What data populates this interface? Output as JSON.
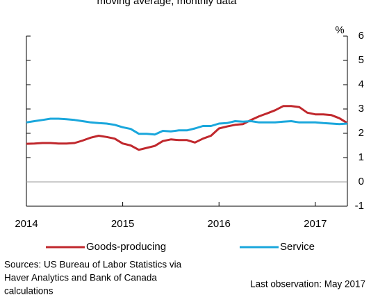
{
  "chart_data": {
    "type": "line",
    "subtitle": "moving average, monthly data",
    "y_unit": "%",
    "x": [
      2014,
      2014.083,
      2014.167,
      2014.25,
      2014.333,
      2014.417,
      2014.5,
      2014.583,
      2014.667,
      2014.75,
      2014.833,
      2014.917,
      2015,
      2015.083,
      2015.167,
      2015.25,
      2015.333,
      2015.417,
      2015.5,
      2015.583,
      2015.667,
      2015.75,
      2015.833,
      2015.917,
      2016,
      2016.083,
      2016.167,
      2016.25,
      2016.333,
      2016.417,
      2016.5,
      2016.583,
      2016.667,
      2016.75,
      2016.833,
      2016.917,
      2017,
      2017.083,
      2017.167,
      2017.25,
      2017.333
    ],
    "series": [
      {
        "name": "Goods-producing",
        "color": "#c0282d",
        "values": [
          1.57,
          1.58,
          1.6,
          1.6,
          1.58,
          1.58,
          1.6,
          1.7,
          1.82,
          1.9,
          1.85,
          1.78,
          1.58,
          1.5,
          1.32,
          1.4,
          1.48,
          1.68,
          1.75,
          1.72,
          1.72,
          1.62,
          1.78,
          1.9,
          2.2,
          2.28,
          2.35,
          2.38,
          2.55,
          2.7,
          2.82,
          2.95,
          3.12,
          3.12,
          3.08,
          2.85,
          2.78,
          2.78,
          2.75,
          2.62,
          2.42
        ]
      },
      {
        "name": "Service",
        "color": "#1aa7dc",
        "values": [
          2.45,
          2.5,
          2.55,
          2.6,
          2.6,
          2.58,
          2.55,
          2.5,
          2.45,
          2.42,
          2.4,
          2.35,
          2.25,
          2.18,
          1.98,
          1.98,
          1.95,
          2.1,
          2.08,
          2.12,
          2.12,
          2.2,
          2.3,
          2.3,
          2.4,
          2.42,
          2.5,
          2.48,
          2.5,
          2.45,
          2.45,
          2.45,
          2.48,
          2.5,
          2.45,
          2.45,
          2.45,
          2.42,
          2.4,
          2.38,
          2.4
        ]
      }
    ],
    "xlim": [
      2014,
      2017.333
    ],
    "xticks": [
      2014,
      2015,
      2016,
      2017
    ],
    "ylim": [
      -1,
      6
    ],
    "yticks": [
      -1,
      0,
      1,
      2,
      3,
      4,
      5,
      6
    ],
    "source": [
      "Sources: US Bureau of Labor Statistics via",
      "Haver Analytics and Bank of Canada",
      "calculations"
    ],
    "note": "Last observation: May 2017"
  }
}
